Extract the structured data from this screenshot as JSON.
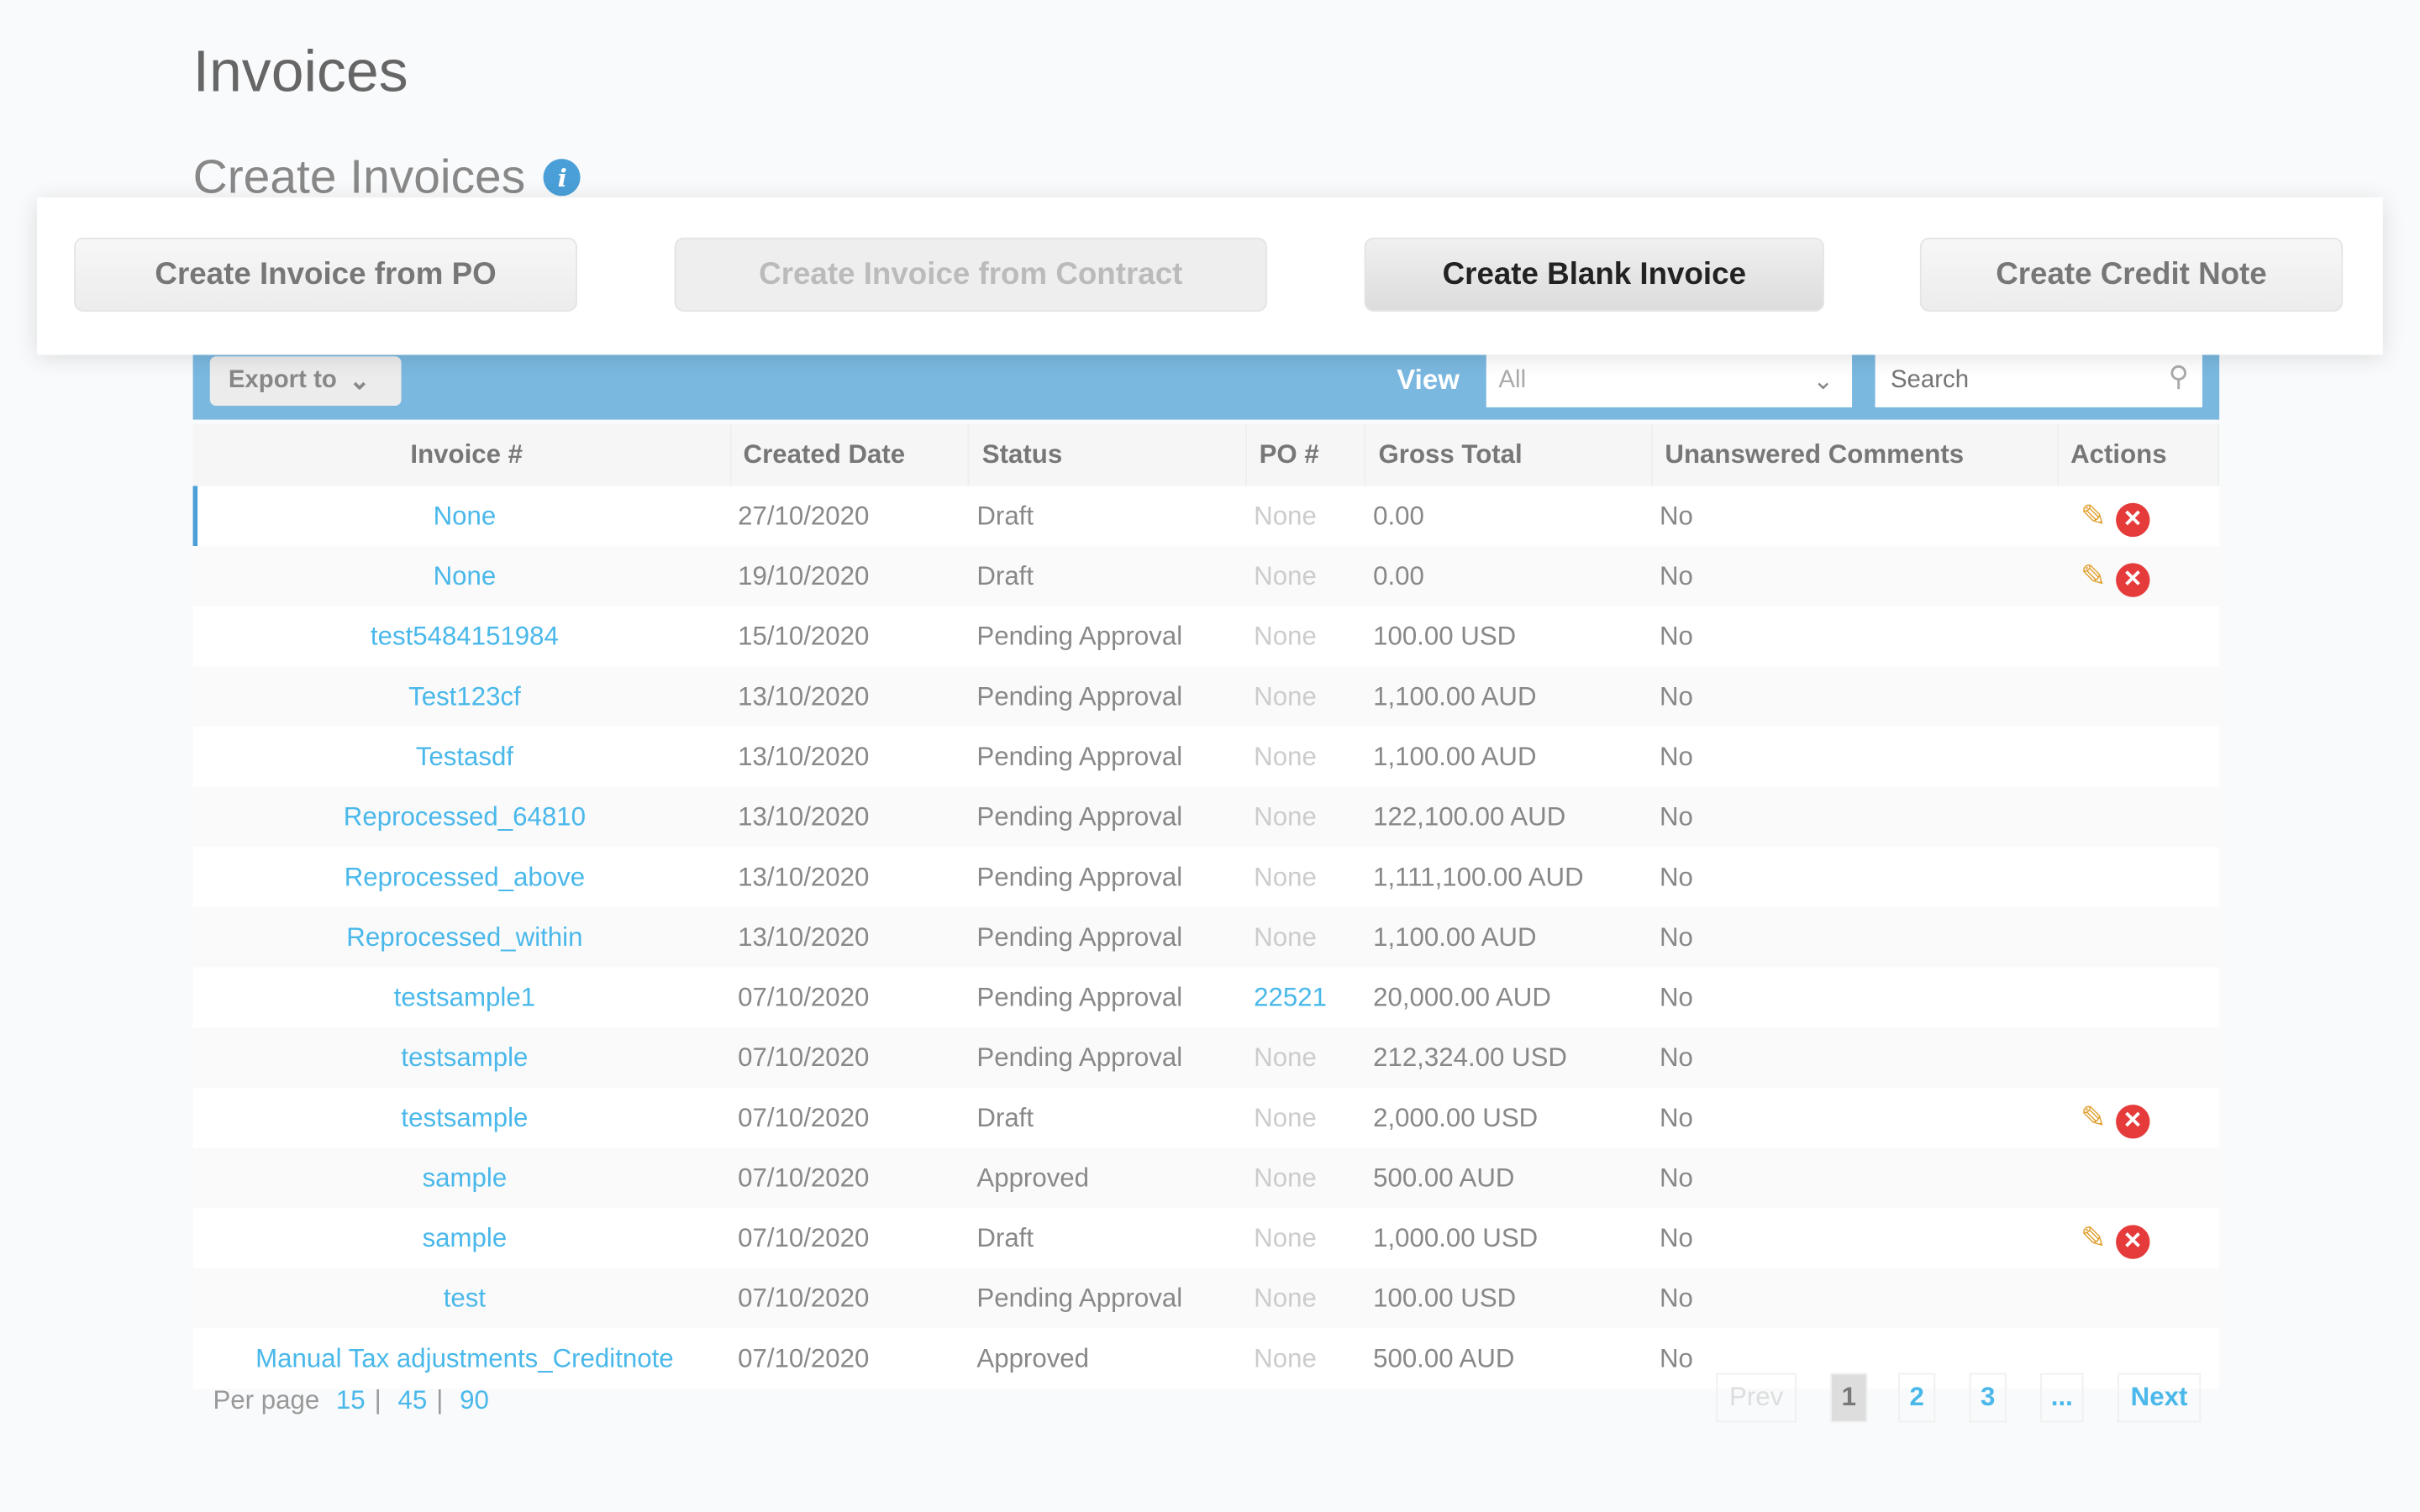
{
  "page": {
    "title": "Invoices",
    "subtitle": "Create Invoices",
    "info_icon": "info-icon"
  },
  "actions": {
    "from_po": "Create Invoice from PO",
    "from_contract": "Create Invoice from Contract",
    "blank": "Create Blank Invoice",
    "credit_note": "Create Credit Note"
  },
  "toolbar": {
    "export": "Export to",
    "view_label": "View",
    "view_value": "All",
    "search_placeholder": "Search"
  },
  "table": {
    "headers": [
      "Invoice #",
      "Created Date",
      "Status",
      "PO #",
      "Gross Total",
      "Unanswered Comments",
      "Actions"
    ],
    "rows": [
      [
        "None",
        "27/10/2020",
        "Draft",
        "None",
        "0.00",
        "No",
        true
      ],
      [
        "None",
        "19/10/2020",
        "Draft",
        "None",
        "0.00",
        "No",
        true
      ],
      [
        "test5484151984",
        "15/10/2020",
        "Pending Approval",
        "None",
        "100.00 USD",
        "No",
        false
      ],
      [
        "Test123cf",
        "13/10/2020",
        "Pending Approval",
        "None",
        "1,100.00 AUD",
        "No",
        false
      ],
      [
        "Testasdf",
        "13/10/2020",
        "Pending Approval",
        "None",
        "1,100.00 AUD",
        "No",
        false
      ],
      [
        "Reprocessed_64810",
        "13/10/2020",
        "Pending Approval",
        "None",
        "122,100.00 AUD",
        "No",
        false
      ],
      [
        "Reprocessed_above",
        "13/10/2020",
        "Pending Approval",
        "None",
        "1,111,100.00 AUD",
        "No",
        false
      ],
      [
        "Reprocessed_within",
        "13/10/2020",
        "Pending Approval",
        "None",
        "1,100.00 AUD",
        "No",
        false
      ],
      [
        "testsample1",
        "07/10/2020",
        "Pending Approval",
        "22521",
        "20,000.00 AUD",
        "No",
        false
      ],
      [
        "testsample",
        "07/10/2020",
        "Pending Approval",
        "None",
        "212,324.00 USD",
        "No",
        false
      ],
      [
        "testsample",
        "07/10/2020",
        "Draft",
        "None",
        "2,000.00 USD",
        "No",
        true
      ],
      [
        "sample",
        "07/10/2020",
        "Approved",
        "None",
        "500.00 AUD",
        "No",
        false
      ],
      [
        "sample",
        "07/10/2020",
        "Draft",
        "None",
        "1,000.00 USD",
        "No",
        true
      ],
      [
        "test",
        "07/10/2020",
        "Pending Approval",
        "None",
        "100.00 USD",
        "No",
        false
      ],
      [
        "Manual Tax adjustments_Creditnote",
        "07/10/2020",
        "Approved",
        "None",
        "500.00 AUD",
        "No",
        false
      ]
    ]
  },
  "footer": {
    "per_page_label": "Per page",
    "per_page_options": [
      "15",
      "45",
      "90"
    ],
    "sep": "|",
    "prev": "Prev",
    "pages": [
      "1",
      "2",
      "3",
      "..."
    ],
    "current_page": "1",
    "next": "Next"
  },
  "colors": {
    "accent": "#7ab8e0",
    "link": "#4ab8ea",
    "delete": "#e53b3b"
  }
}
